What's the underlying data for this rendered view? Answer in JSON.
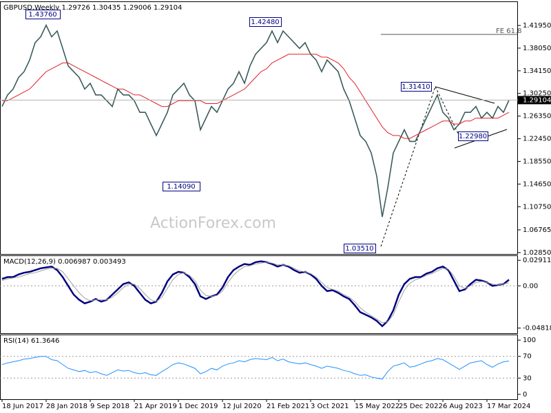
{
  "chart_data": [
    {
      "type": "line",
      "title": "GBPUSD,Weekly  1.29726 1.30435 1.29006 1.29104",
      "watermark": "ActionForex.com",
      "series": [
        {
          "color": "#3b5b5b",
          "values": [
            1.28,
            1.3,
            1.31,
            1.33,
            1.34,
            1.36,
            1.39,
            1.4,
            1.42,
            1.4,
            1.41,
            1.38,
            1.35,
            1.34,
            1.33,
            1.31,
            1.32,
            1.3,
            1.3,
            1.29,
            1.28,
            1.31,
            1.3,
            1.3,
            1.29,
            1.27,
            1.27,
            1.25,
            1.23,
            1.25,
            1.27,
            1.3,
            1.31,
            1.32,
            1.3,
            1.29,
            1.24,
            1.26,
            1.28,
            1.27,
            1.29,
            1.31,
            1.32,
            1.34,
            1.32,
            1.35,
            1.37,
            1.38,
            1.39,
            1.41,
            1.39,
            1.41,
            1.4,
            1.39,
            1.38,
            1.39,
            1.37,
            1.36,
            1.34,
            1.36,
            1.35,
            1.34,
            1.31,
            1.29,
            1.26,
            1.23,
            1.22,
            1.2,
            1.16,
            1.09,
            1.14,
            1.2,
            1.22,
            1.24,
            1.22,
            1.22,
            1.24,
            1.26,
            1.28,
            1.3,
            1.27,
            1.26,
            1.24,
            1.25,
            1.27,
            1.27,
            1.28,
            1.26,
            1.27,
            1.26,
            1.28,
            1.27,
            1.291
          ]
        },
        {
          "color": "#e0202a",
          "values": [
            1.29,
            1.29,
            1.295,
            1.3,
            1.305,
            1.31,
            1.32,
            1.33,
            1.34,
            1.345,
            1.35,
            1.355,
            1.355,
            1.35,
            1.345,
            1.34,
            1.335,
            1.33,
            1.325,
            1.32,
            1.315,
            1.31,
            1.31,
            1.305,
            1.3,
            1.3,
            1.295,
            1.29,
            1.285,
            1.28,
            1.28,
            1.285,
            1.29,
            1.29,
            1.29,
            1.29,
            1.29,
            1.285,
            1.285,
            1.285,
            1.29,
            1.295,
            1.3,
            1.305,
            1.31,
            1.32,
            1.33,
            1.34,
            1.345,
            1.355,
            1.36,
            1.365,
            1.37,
            1.37,
            1.37,
            1.37,
            1.37,
            1.37,
            1.365,
            1.365,
            1.36,
            1.355,
            1.345,
            1.33,
            1.32,
            1.305,
            1.29,
            1.275,
            1.26,
            1.245,
            1.235,
            1.23,
            1.23,
            1.225,
            1.225,
            1.23,
            1.235,
            1.24,
            1.245,
            1.25,
            1.255,
            1.255,
            1.25,
            1.25,
            1.255,
            1.255,
            1.26,
            1.26,
            1.26,
            1.26,
            1.26,
            1.265,
            1.27
          ]
        }
      ],
      "ylim": [
        1.0261,
        1.4598
      ],
      "yticks": [
        {
          "value": 1.4195,
          "label": "1.41950"
        },
        {
          "value": 1.3805,
          "label": "1.38050"
        },
        {
          "value": 1.3415,
          "label": "1.34150"
        },
        {
          "value": 1.3025,
          "label": "1.30250"
        },
        {
          "value": 1.2635,
          "label": "1.26350"
        },
        {
          "value": 1.2245,
          "label": "1.22450"
        },
        {
          "value": 1.1855,
          "label": "1.18550"
        },
        {
          "value": 1.1465,
          "label": "1.14650"
        },
        {
          "value": 1.1075,
          "label": "1.10750"
        },
        {
          "value": 1.06765,
          "label": "1.06765"
        },
        {
          "value": 1.0285,
          "label": "1.02850"
        }
      ],
      "last_price": {
        "value": 1.29104,
        "label": "1.29104"
      },
      "annotations": [
        "1.43760",
        "1.42480",
        "1.14090",
        "1.03510",
        "1.31410",
        "1.22980",
        "FE 61.8"
      ]
    },
    {
      "type": "line",
      "title": "MACD(12,26,9) 0.006987 0.003493",
      "series": [
        {
          "color": "#000080",
          "values": [
            0.008,
            0.01,
            0.01,
            0.013,
            0.015,
            0.016,
            0.018,
            0.02,
            0.021,
            0.022,
            0.018,
            0.01,
            0.0,
            -0.01,
            -0.016,
            -0.02,
            -0.018,
            -0.015,
            -0.018,
            -0.016,
            -0.01,
            -0.004,
            0.002,
            0.004,
            0.0,
            -0.008,
            -0.016,
            -0.02,
            -0.018,
            -0.008,
            0.005,
            0.013,
            0.016,
            0.015,
            0.01,
            0.002,
            -0.012,
            -0.015,
            -0.012,
            -0.01,
            -0.002,
            0.01,
            0.018,
            0.022,
            0.025,
            0.024,
            0.027,
            0.028,
            0.027,
            0.025,
            0.022,
            0.024,
            0.022,
            0.018,
            0.015,
            0.016,
            0.013,
            0.008,
            0.0,
            -0.006,
            -0.005,
            -0.008,
            -0.012,
            -0.015,
            -0.022,
            -0.03,
            -0.033,
            -0.036,
            -0.04,
            -0.046,
            -0.04,
            -0.028,
            -0.01,
            0.002,
            0.008,
            0.01,
            0.01,
            0.014,
            0.016,
            0.02,
            0.022,
            0.018,
            0.006,
            -0.006,
            -0.004,
            0.002,
            0.007,
            0.006,
            0.004,
            0.0,
            0.001,
            0.002,
            0.007
          ]
        },
        {
          "color": "#a0a0a0",
          "values": [
            0.006,
            0.008,
            0.009,
            0.01,
            0.012,
            0.014,
            0.015,
            0.017,
            0.019,
            0.02,
            0.02,
            0.016,
            0.008,
            0.0,
            -0.008,
            -0.014,
            -0.017,
            -0.016,
            -0.016,
            -0.016,
            -0.013,
            -0.008,
            -0.002,
            0.002,
            0.002,
            -0.003,
            -0.01,
            -0.016,
            -0.018,
            -0.013,
            -0.003,
            0.007,
            0.013,
            0.015,
            0.012,
            0.006,
            -0.005,
            -0.011,
            -0.012,
            -0.011,
            -0.006,
            0.004,
            0.012,
            0.018,
            0.022,
            0.023,
            0.025,
            0.026,
            0.027,
            0.026,
            0.024,
            0.024,
            0.023,
            0.02,
            0.017,
            0.016,
            0.014,
            0.01,
            0.004,
            -0.002,
            -0.004,
            -0.006,
            -0.01,
            -0.013,
            -0.018,
            -0.025,
            -0.03,
            -0.034,
            -0.038,
            -0.042,
            -0.041,
            -0.033,
            -0.018,
            -0.005,
            0.003,
            0.007,
            0.009,
            0.012,
            0.014,
            0.017,
            0.02,
            0.019,
            0.011,
            0.0,
            -0.003,
            0.0,
            0.004,
            0.005,
            0.004,
            0.002,
            0.001,
            0.002,
            0.0035
          ]
        }
      ],
      "ylim": [
        -0.054,
        0.034
      ],
      "yticks": [
        0.029114,
        {
          "value": 0,
          "label": "0.00"
        },
        -0.048189
      ],
      "levels": [
        0
      ]
    },
    {
      "type": "line",
      "title": "RSI(14) 61.3646",
      "categories": [
        "18 Jun 2017",
        null,
        null,
        null,
        null,
        null,
        null,
        null,
        "28 Jan 2018",
        null,
        null,
        null,
        null,
        null,
        null,
        null,
        "9 Sep 2018",
        null,
        null,
        null,
        null,
        null,
        null,
        null,
        "21 Apr 2019",
        null,
        null,
        null,
        null,
        null,
        null,
        null,
        "1 Dec 2019",
        null,
        null,
        null,
        null,
        null,
        null,
        null,
        "12 Jul 2020",
        null,
        null,
        null,
        null,
        null,
        null,
        null,
        "21 Feb 2021",
        null,
        null,
        null,
        null,
        null,
        null,
        null,
        "3 Oct 2021",
        null,
        null,
        null,
        null,
        null,
        null,
        null,
        "15 May 2022",
        null,
        null,
        null,
        null,
        null,
        null,
        null,
        "25 Dec 2022",
        null,
        null,
        null,
        null,
        null,
        null,
        null,
        "6 Aug 2023",
        null,
        null,
        null,
        null,
        null,
        null,
        null,
        "17 Mar 2024",
        null,
        null,
        null,
        null
      ],
      "series": [
        {
          "color": "#1e90ff",
          "values": [
            55,
            58,
            60,
            62,
            65,
            66,
            68,
            70,
            70,
            64,
            62,
            55,
            48,
            45,
            42,
            44,
            40,
            42,
            38,
            35,
            40,
            45,
            43,
            44,
            40,
            38,
            40,
            36,
            35,
            42,
            48,
            55,
            58,
            56,
            52,
            48,
            38,
            42,
            48,
            45,
            52,
            56,
            58,
            62,
            60,
            64,
            66,
            65,
            64,
            68,
            62,
            65,
            60,
            58,
            56,
            58,
            55,
            52,
            48,
            52,
            50,
            48,
            44,
            42,
            38,
            35,
            36,
            32,
            30,
            28,
            42,
            52,
            55,
            58,
            50,
            52,
            56,
            60,
            62,
            66,
            64,
            58,
            52,
            46,
            52,
            58,
            60,
            62,
            55,
            50,
            56,
            60,
            61.36
          ]
        }
      ],
      "ylim": [
        -9,
        109
      ],
      "yticks": [
        100,
        70,
        30,
        0
      ],
      "levels": [
        70,
        30
      ]
    }
  ]
}
